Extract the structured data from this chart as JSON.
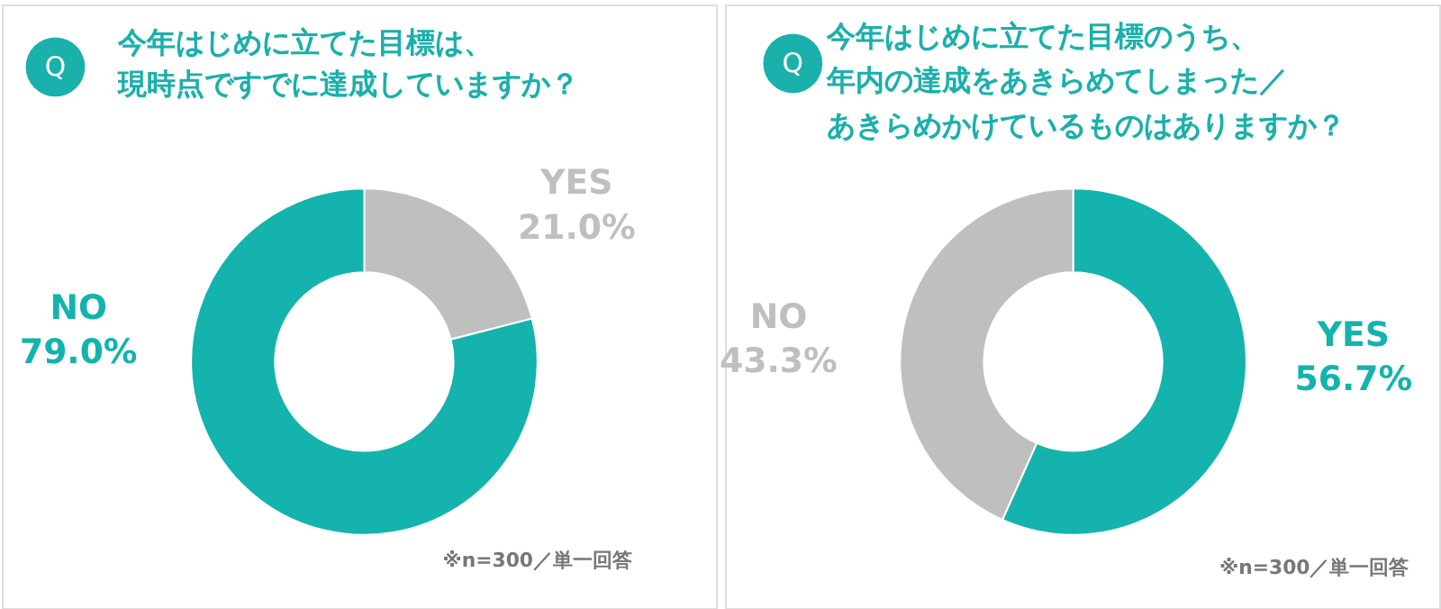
{
  "chart_data": [
    {
      "type": "donut",
      "title": "今年はじめに立てた目標は、現時点ですでに達成していますか？",
      "categories": [
        "YES",
        "NO"
      ],
      "values": [
        21.0,
        79.0
      ],
      "colors": [
        "#bfbfbf",
        "#14b3ad"
      ],
      "value_labels": [
        "21.0%",
        "79.0%"
      ],
      "annotations": [
        "Q",
        "※n=300／単一回答"
      ],
      "legend": false
    },
    {
      "type": "donut",
      "title": "今年はじめに立てた目標のうち、年内の達成をあきらめてしまった／あきらめかけているものはありますか？",
      "categories": [
        "YES",
        "NO"
      ],
      "values": [
        56.7,
        43.3
      ],
      "colors": [
        "#14b3ad",
        "#bfbfbf"
      ],
      "value_labels": [
        "56.7%",
        "43.3%"
      ],
      "annotations": [
        "Q",
        "※n=300／単一回答"
      ],
      "legend": false
    }
  ]
}
